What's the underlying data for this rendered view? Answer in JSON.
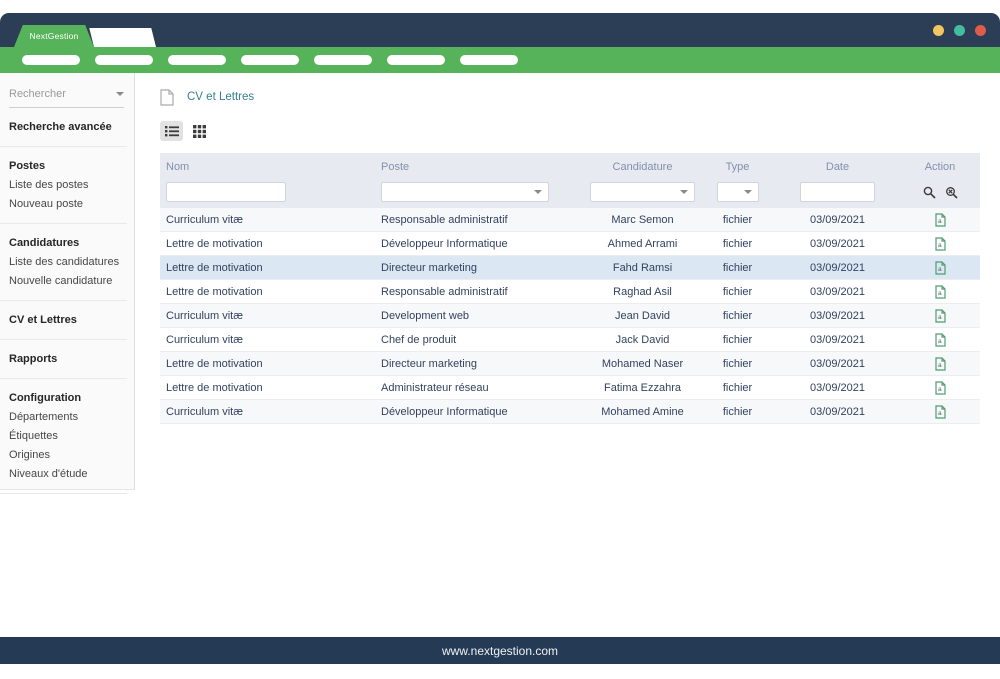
{
  "window": {
    "brand": "NextGestion",
    "traffic_lights": [
      "#f2c65f",
      "#43bda2",
      "#dd5c4c"
    ]
  },
  "navbar": {
    "pill_count": 7
  },
  "sidebar": {
    "search_placeholder": "Rechercher",
    "sections": [
      {
        "items": [
          {
            "label": "Recherche avancée",
            "bold": true
          }
        ]
      },
      {
        "items": [
          {
            "label": "Postes",
            "bold": true
          },
          {
            "label": "Liste des postes"
          },
          {
            "label": "Nouveau poste"
          }
        ]
      },
      {
        "items": [
          {
            "label": "Candidatures",
            "bold": true
          },
          {
            "label": "Liste des candidatures"
          },
          {
            "label": "Nouvelle candidature"
          }
        ]
      },
      {
        "items": [
          {
            "label": "CV et Lettres",
            "bold": true
          }
        ]
      },
      {
        "items": [
          {
            "label": "Rapports",
            "bold": true
          }
        ]
      },
      {
        "items": [
          {
            "label": "Configuration",
            "bold": true
          },
          {
            "label": "Départements"
          },
          {
            "label": "Étiquettes"
          },
          {
            "label": "Origines"
          },
          {
            "label": "Niveaux d'étude"
          }
        ]
      }
    ]
  },
  "main": {
    "title": "CV et Lettres"
  },
  "icons": {
    "title_icon": "document-icon",
    "list_view": "list-view-icon",
    "grid_view": "grid-view-icon",
    "search": "search-icon",
    "clear_search": "clear-search-icon",
    "row_action": "file-pdf-icon"
  },
  "table": {
    "columns": [
      "Nom",
      "Poste",
      "Candidature",
      "Type",
      "Date",
      "Action"
    ],
    "rows": [
      {
        "nom": "Curriculum vitæ",
        "poste": "Responsable administratif",
        "candidature": "Marc Semon",
        "type": "fichier",
        "date": "03/09/2021"
      },
      {
        "nom": "Lettre de motivation",
        "poste": "Développeur Informatique",
        "candidature": "Ahmed Arrami",
        "type": "fichier",
        "date": "03/09/2021"
      },
      {
        "nom": "Lettre de motivation",
        "poste": "Directeur marketing",
        "candidature": "Fahd Ramsi",
        "type": "fichier",
        "date": "03/09/2021",
        "highlight": true
      },
      {
        "nom": "Lettre de motivation",
        "poste": "Responsable administratif",
        "candidature": "Raghad Asil",
        "type": "fichier",
        "date": "03/09/2021"
      },
      {
        "nom": "Curriculum vitæ",
        "poste": "Development web",
        "candidature": "Jean David",
        "type": "fichier",
        "date": "03/09/2021"
      },
      {
        "nom": "Curriculum vitæ",
        "poste": "Chef de produit",
        "candidature": "Jack David",
        "type": "fichier",
        "date": "03/09/2021"
      },
      {
        "nom": "Lettre de motivation",
        "poste": "Directeur marketing",
        "candidature": "Mohamed Naser",
        "type": "fichier",
        "date": "03/09/2021"
      },
      {
        "nom": "Lettre de motivation",
        "poste": "Administrateur réseau",
        "candidature": "Fatima Ezzahra",
        "type": "fichier",
        "date": "03/09/2021"
      },
      {
        "nom": "Curriculum vitæ",
        "poste": "Développeur Informatique",
        "candidature": "Mohamed Amine",
        "type": "fichier",
        "date": "03/09/2021"
      }
    ]
  },
  "footer": {
    "url": "www.nextgestion.com"
  },
  "colors": {
    "navy": "#2b3e55",
    "green": "#57b35a",
    "title_teal": "#35808e",
    "table_header_bg": "#e8eaf1",
    "row_highlight": "#dbe7f3",
    "cell_text": "#32425f"
  }
}
